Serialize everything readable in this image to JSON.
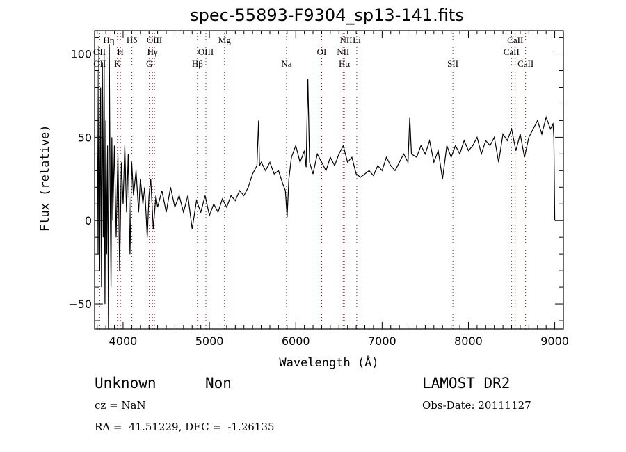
{
  "chart_data": {
    "type": "line",
    "title": "spec-55893-F9304_sp13-141.fits",
    "xlabel": "Wavelength (Å)",
    "ylabel": "Flux (relative)",
    "xlim": [
      3670,
      9100
    ],
    "ylim": [
      -65,
      114
    ],
    "xticks": [
      4000,
      5000,
      6000,
      7000,
      8000,
      9000
    ],
    "yticks": [
      -50,
      0,
      50,
      100
    ],
    "grid": false,
    "series": [
      {
        "name": "spectrum",
        "color": "#000000",
        "x": [
          3700,
          3710,
          3720,
          3730,
          3740,
          3750,
          3760,
          3770,
          3780,
          3790,
          3800,
          3810,
          3820,
          3830,
          3840,
          3850,
          3860,
          3870,
          3880,
          3900,
          3920,
          3940,
          3960,
          3980,
          4000,
          4020,
          4040,
          4060,
          4080,
          4100,
          4120,
          4150,
          4180,
          4200,
          4230,
          4250,
          4280,
          4300,
          4320,
          4350,
          4380,
          4400,
          4450,
          4500,
          4550,
          4600,
          4650,
          4700,
          4750,
          4800,
          4850,
          4900,
          4950,
          5000,
          5050,
          5100,
          5150,
          5200,
          5250,
          5300,
          5350,
          5400,
          5450,
          5500,
          5550,
          5570,
          5580,
          5600,
          5650,
          5700,
          5750,
          5800,
          5850,
          5880,
          5900,
          5920,
          5950,
          6000,
          6050,
          6100,
          6120,
          6140,
          6160,
          6200,
          6250,
          6300,
          6350,
          6400,
          6450,
          6500,
          6550,
          6600,
          6650,
          6700,
          6750,
          6800,
          6850,
          6900,
          6950,
          7000,
          7050,
          7100,
          7150,
          7200,
          7250,
          7300,
          7320,
          7340,
          7400,
          7450,
          7500,
          7550,
          7600,
          7650,
          7700,
          7750,
          7800,
          7850,
          7900,
          7950,
          8000,
          8050,
          8100,
          8150,
          8200,
          8250,
          8300,
          8350,
          8400,
          8450,
          8500,
          8550,
          8600,
          8650,
          8700,
          8750,
          8800,
          8850,
          8900,
          8950,
          8980,
          8990,
          9000
        ],
        "y": [
          90,
          -20,
          105,
          -30,
          80,
          -40,
          95,
          -10,
          100,
          -50,
          60,
          -20,
          45,
          -65,
          106,
          20,
          -40,
          50,
          0,
          45,
          -10,
          40,
          -30,
          35,
          10,
          45,
          5,
          40,
          -20,
          35,
          15,
          30,
          5,
          25,
          10,
          20,
          -10,
          15,
          25,
          -5,
          15,
          8,
          18,
          5,
          20,
          8,
          15,
          5,
          15,
          -5,
          12,
          5,
          15,
          3,
          10,
          5,
          13,
          8,
          15,
          12,
          18,
          15,
          20,
          28,
          33,
          60,
          33,
          35,
          30,
          35,
          28,
          30,
          22,
          18,
          2,
          25,
          38,
          45,
          35,
          42,
          32,
          85,
          35,
          28,
          40,
          35,
          30,
          38,
          33,
          40,
          45,
          35,
          38,
          28,
          26,
          28,
          30,
          27,
          33,
          30,
          38,
          33,
          30,
          35,
          40,
          35,
          62,
          40,
          38,
          45,
          40,
          48,
          35,
          42,
          25,
          45,
          38,
          45,
          40,
          48,
          42,
          45,
          50,
          40,
          48,
          45,
          50,
          35,
          52,
          48,
          55,
          42,
          52,
          38,
          50,
          55,
          60,
          52,
          62,
          55,
          58,
          50,
          0
        ]
      }
    ],
    "annotations": [
      {
        "label": "Hη",
        "wavelength": 3835,
        "row": 1
      },
      {
        "label": "Hδ",
        "wavelength": 4102,
        "row": 1
      },
      {
        "label": "OIII",
        "wavelength": 4363,
        "row": 1
      },
      {
        "label": "Mg",
        "wavelength": 5175,
        "row": 1
      },
      {
        "label": "NII",
        "wavelength": 6583,
        "row": 1
      },
      {
        "label": "Li",
        "wavelength": 6707,
        "row": 1
      },
      {
        "label": "CaII",
        "wavelength": 8542,
        "row": 1
      },
      {
        "label": "OII",
        "wavelength": 3727,
        "row": 2
      },
      {
        "label": "H",
        "wavelength": 3969,
        "row": 2
      },
      {
        "label": "Hγ",
        "wavelength": 4340,
        "row": 2
      },
      {
        "label": "OIII",
        "wavelength": 4959,
        "row": 2
      },
      {
        "label": "OI",
        "wavelength": 6300,
        "row": 2
      },
      {
        "label": "NII",
        "wavelength": 6548,
        "row": 2
      },
      {
        "label": "CaII",
        "wavelength": 8498,
        "row": 2
      },
      {
        "label": "OII",
        "wavelength": 3729,
        "row": 3
      },
      {
        "label": "K",
        "wavelength": 3934,
        "row": 3
      },
      {
        "label": "G",
        "wavelength": 4304,
        "row": 3
      },
      {
        "label": "Hβ",
        "wavelength": 4861,
        "row": 3
      },
      {
        "label": "Na",
        "wavelength": 5893,
        "row": 3
      },
      {
        "label": "Hα",
        "wavelength": 6563,
        "row": 3
      },
      {
        "label": "SII",
        "wavelength": 7820,
        "row": 3
      },
      {
        "label": "CaII",
        "wavelength": 8662,
        "row": 3
      }
    ],
    "marker_line_color": "#8b1a1a"
  },
  "info": {
    "class": "Unknown",
    "subclass": "Non",
    "survey": "LAMOST DR2",
    "cz": "cz = NaN",
    "obs_date": "Obs-Date: 20111127",
    "coords": "RA =  41.51229, DEC =  -1.26135"
  }
}
